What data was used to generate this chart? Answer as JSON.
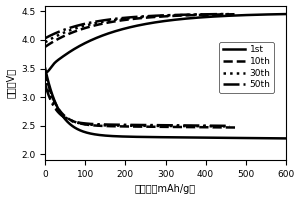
{
  "title": "",
  "xlabel": "比容量（mAh/g）",
  "ylabel": "电压（V）",
  "xlim": [
    0,
    600
  ],
  "ylim": [
    1.9,
    4.6
  ],
  "yticks": [
    2.0,
    2.5,
    3.0,
    3.5,
    4.0,
    4.5
  ],
  "xticks": [
    0,
    100,
    200,
    300,
    400,
    500,
    600
  ],
  "legend": [
    "1st",
    "10th",
    "30th",
    "50th"
  ],
  "linestyles": [
    "-",
    "--",
    ":",
    "-."
  ],
  "linewidths": [
    1.8,
    1.8,
    1.8,
    1.8
  ],
  "colors": [
    "black",
    "black",
    "black",
    "black"
  ],
  "background": "#f0f0f0"
}
